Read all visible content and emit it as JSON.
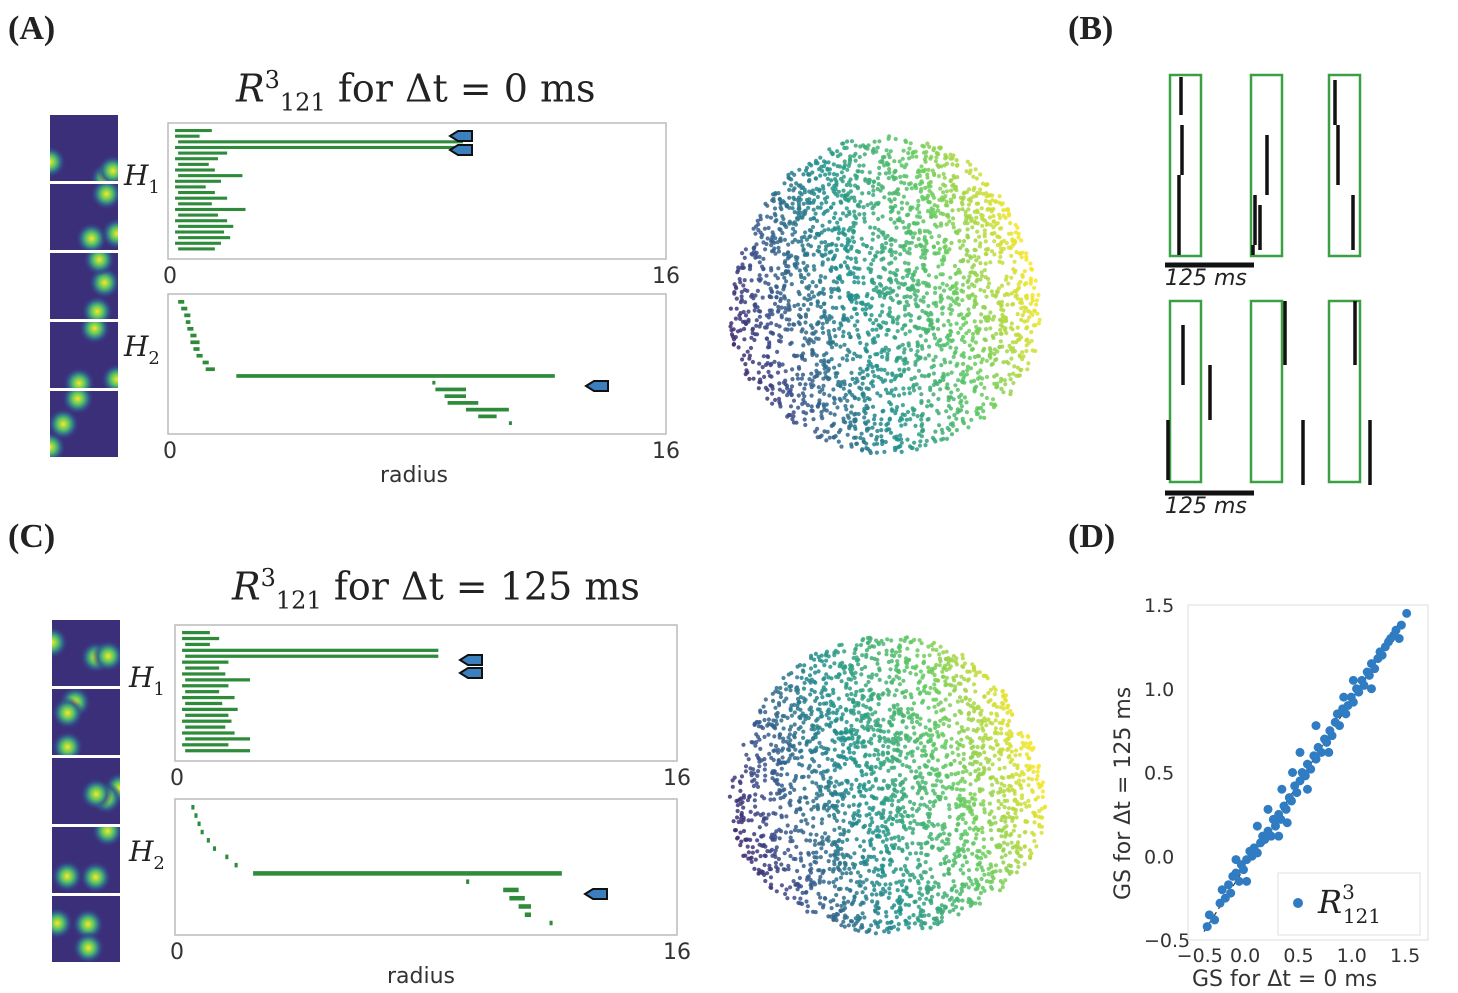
{
  "panels": {
    "A": {
      "letter": "(A)"
    },
    "B": {
      "letter": "(B)"
    },
    "C": {
      "letter": "(C)"
    },
    "D": {
      "letter": "(D)"
    }
  },
  "titles": {
    "A": {
      "prefix": "R",
      "sup": "3",
      "sub": "121",
      "text": "for Δt = 0 ms"
    },
    "C": {
      "prefix": "R",
      "sup": "3",
      "sub": "121",
      "text": "for Δt = 125 ms"
    }
  },
  "barcode_labels": {
    "h1": "H",
    "h1_sub": "1",
    "h2": "H",
    "h2_sub": "2",
    "radius": "radius",
    "tick_min": "0",
    "tick_max": "16"
  },
  "spike_scale": {
    "label": "125 ms"
  },
  "colors": {
    "bar_green": "#2e8b3a",
    "arrow_blue": "#3b7fbf",
    "scatter_blue": "#2f7cc2",
    "viridis_dark": "#440154",
    "viridis_mid": "#21918c",
    "viridis_light": "#fde725"
  },
  "chart_data": [
    {
      "type": "bar",
      "panel": "A",
      "name": "H1 barcode",
      "xlabel": "",
      "xlim": [
        0,
        16
      ],
      "ticks": [
        "0",
        "16"
      ],
      "bars": [
        [
          0.1,
          1.3
        ],
        [
          0.1,
          0.9
        ],
        [
          0.2,
          9.5
        ],
        [
          0.1,
          9.5
        ],
        [
          0.2,
          1.8
        ],
        [
          0.1,
          1.5
        ],
        [
          0.2,
          1.2
        ],
        [
          0.1,
          1.4
        ],
        [
          0.2,
          2.3
        ],
        [
          0.1,
          1.6
        ],
        [
          0.1,
          1.1
        ],
        [
          0.2,
          1.4
        ],
        [
          0.1,
          1.8
        ],
        [
          0.2,
          1.3
        ],
        [
          0.1,
          2.4
        ],
        [
          0.2,
          1.5
        ],
        [
          0.1,
          1.8
        ],
        [
          0.2,
          2.0
        ],
        [
          0.1,
          1.7
        ],
        [
          0.2,
          1.9
        ],
        [
          0.1,
          1.6
        ],
        [
          0.2,
          1.4
        ]
      ]
    },
    {
      "type": "bar",
      "panel": "A",
      "name": "H2 barcode",
      "xlabel": "radius",
      "xlim": [
        0,
        16
      ],
      "ticks": [
        "0",
        "16"
      ],
      "bars": [
        [
          0.2,
          0.4
        ],
        [
          0.3,
          0.5
        ],
        [
          0.4,
          0.6
        ],
        [
          0.45,
          0.6
        ],
        [
          0.5,
          0.7
        ],
        [
          0.6,
          0.8
        ],
        [
          0.6,
          0.9
        ],
        [
          0.7,
          0.9
        ],
        [
          0.8,
          1.0
        ],
        [
          1.0,
          1.2
        ],
        [
          1.1,
          1.4
        ],
        [
          2.1,
          12.5
        ],
        [
          8.5,
          8.6
        ],
        [
          8.6,
          9.6
        ],
        [
          8.9,
          9.6
        ],
        [
          9.0,
          10.0
        ],
        [
          9.6,
          11.0
        ],
        [
          10.0,
          10.6
        ],
        [
          11.0,
          11.1
        ]
      ]
    },
    {
      "type": "bar",
      "panel": "C",
      "name": "H1 barcode",
      "xlabel": "",
      "xlim": [
        0,
        16
      ],
      "ticks": [
        "0",
        "16"
      ],
      "bars": [
        [
          0.1,
          1.0
        ],
        [
          0.1,
          1.3
        ],
        [
          0.2,
          1.0
        ],
        [
          0.1,
          8.4
        ],
        [
          0.2,
          8.4
        ],
        [
          0.1,
          1.6
        ],
        [
          0.2,
          1.3
        ],
        [
          0.1,
          1.5
        ],
        [
          0.2,
          2.3
        ],
        [
          0.1,
          1.6
        ],
        [
          0.2,
          1.3
        ],
        [
          0.1,
          1.8
        ],
        [
          0.2,
          1.4
        ],
        [
          0.1,
          1.9
        ],
        [
          0.2,
          1.6
        ],
        [
          0.1,
          1.7
        ],
        [
          0.2,
          1.5
        ],
        [
          0.1,
          1.8
        ],
        [
          0.2,
          2.3
        ],
        [
          0.1,
          1.6
        ],
        [
          0.2,
          2.3
        ]
      ]
    },
    {
      "type": "bar",
      "panel": "C",
      "name": "H2 barcode",
      "xlabel": "radius",
      "xlim": [
        0,
        16
      ],
      "ticks": [
        "0",
        "16"
      ],
      "bars": [
        [
          0.4,
          0.5
        ],
        [
          0.5,
          0.6
        ],
        [
          0.6,
          0.7
        ],
        [
          0.7,
          0.8
        ],
        [
          0.9,
          1.0
        ],
        [
          1.1,
          1.2
        ],
        [
          1.5,
          1.6
        ],
        [
          1.8,
          1.9
        ],
        [
          2.4,
          12.4
        ],
        [
          9.3,
          9.4
        ],
        [
          10.5,
          11.0
        ],
        [
          10.7,
          11.2
        ],
        [
          11.0,
          11.4
        ],
        [
          11.2,
          11.4
        ],
        [
          12.0,
          12.1
        ]
      ]
    },
    {
      "type": "scatter",
      "panel": "D",
      "xlabel": "GS for Δt = 0 ms",
      "ylabel": "GS for Δt = 125 ms",
      "xlim": [
        -0.6,
        1.65
      ],
      "ylim": [
        -0.5,
        1.5
      ],
      "xticks": [
        "−0.5",
        "0.0",
        "0.5",
        "1.0",
        "1.5"
      ],
      "yticks": [
        "−0.5",
        "0.0",
        "0.5",
        "1.0",
        "1.5"
      ],
      "legend": "R",
      "legend_sup": "3",
      "legend_sub": "121",
      "legend_position": "bottom-right",
      "series": [
        {
          "name": "R³₁₂₁",
          "x": [
            -0.42,
            -0.4,
            -0.35,
            -0.3,
            -0.28,
            -0.25,
            -0.22,
            -0.2,
            -0.18,
            -0.15,
            -0.12,
            -0.1,
            -0.08,
            -0.05,
            -0.02,
            0.0,
            0.02,
            0.05,
            0.08,
            0.1,
            0.12,
            0.15,
            0.18,
            0.2,
            0.22,
            0.25,
            0.27,
            0.3,
            0.32,
            0.35,
            0.37,
            0.4,
            0.42,
            0.45,
            0.47,
            0.5,
            0.52,
            0.55,
            0.58,
            0.6,
            0.62,
            0.65,
            0.68,
            0.7,
            0.73,
            0.75,
            0.78,
            0.8,
            0.82,
            0.85,
            0.88,
            0.9,
            0.93,
            0.95,
            0.98,
            1.0,
            1.03,
            1.05,
            1.08,
            1.1,
            1.12,
            1.15,
            1.18,
            1.2,
            1.22,
            1.25,
            1.28,
            1.3,
            1.33,
            1.35,
            1.38,
            1.4,
            1.45,
            0.28,
            0.33,
            0.45,
            0.52,
            0.05,
            -0.05,
            0.15,
            0.6,
            0.72,
            0.38,
            0.25,
            -0.15,
            0.95,
            1.12,
            0.86
          ],
          "y": [
            -0.42,
            -0.35,
            -0.38,
            -0.28,
            -0.2,
            -0.25,
            -0.17,
            -0.22,
            -0.12,
            -0.1,
            -0.15,
            -0.05,
            -0.08,
            -0.02,
            0.03,
            0.0,
            0.05,
            0.02,
            0.08,
            0.12,
            0.1,
            0.15,
            0.12,
            0.22,
            0.18,
            0.25,
            0.22,
            0.3,
            0.28,
            0.35,
            0.33,
            0.42,
            0.38,
            0.45,
            0.5,
            0.48,
            0.55,
            0.52,
            0.6,
            0.58,
            0.65,
            0.62,
            0.7,
            0.68,
            0.75,
            0.72,
            0.8,
            0.85,
            0.78,
            0.88,
            0.85,
            0.9,
            0.95,
            0.92,
            1.0,
            0.98,
            1.05,
            1.02,
            1.1,
            1.08,
            1.15,
            1.12,
            1.18,
            1.22,
            1.2,
            1.25,
            1.28,
            1.3,
            1.32,
            1.35,
            1.3,
            1.38,
            1.45,
            0.4,
            0.2,
            0.62,
            0.4,
            0.18,
            -0.15,
            0.28,
            0.78,
            0.62,
            0.5,
            0.12,
            -0.02,
            1.05,
            1.0,
            0.95
          ]
        }
      ]
    }
  ]
}
